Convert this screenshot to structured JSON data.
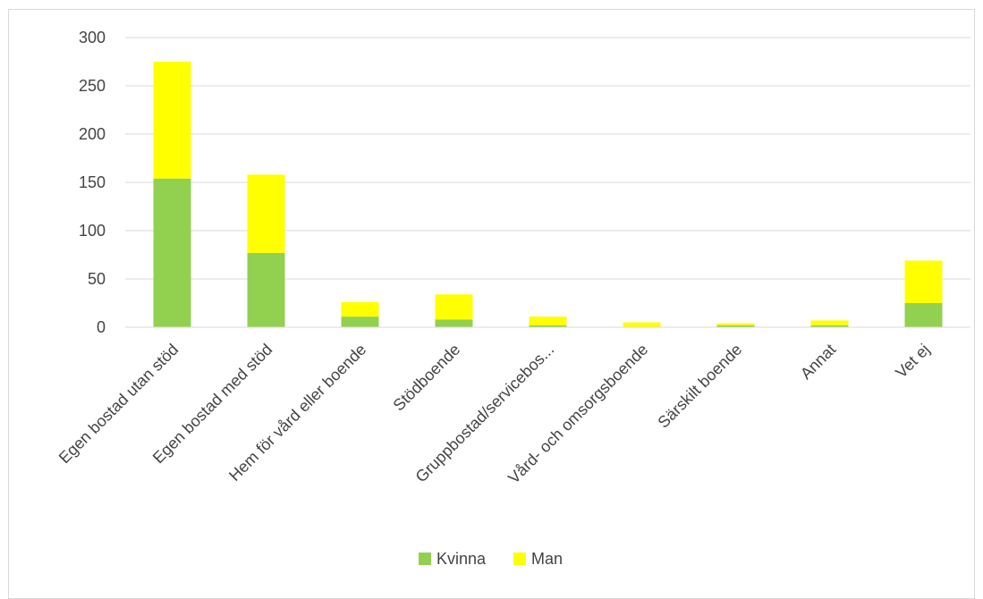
{
  "chart_data": {
    "type": "bar",
    "stacked": true,
    "title": "",
    "xlabel": "",
    "ylabel": "",
    "ylim": [
      0,
      300
    ],
    "yticks": [
      0,
      50,
      100,
      150,
      200,
      250,
      300
    ],
    "grid": true,
    "legend_position": "bottom",
    "categories": [
      "Egen bostad utan stöd",
      "Egen bostad med stöd",
      "Hem för vård eller boende",
      "Stödboende",
      "Gruppbostad/servicebos...",
      "Vård- och omsorgsboende",
      "Särskilt boende",
      "Annat",
      "Vet ej"
    ],
    "series": [
      {
        "name": "Kvinna",
        "color": "#92d050",
        "values": [
          154,
          77,
          11,
          8,
          2,
          0,
          2,
          2,
          25
        ]
      },
      {
        "name": "Man",
        "color": "#ffff00",
        "values": [
          121,
          81,
          15,
          26,
          9,
          5,
          2,
          5,
          44
        ]
      }
    ]
  }
}
